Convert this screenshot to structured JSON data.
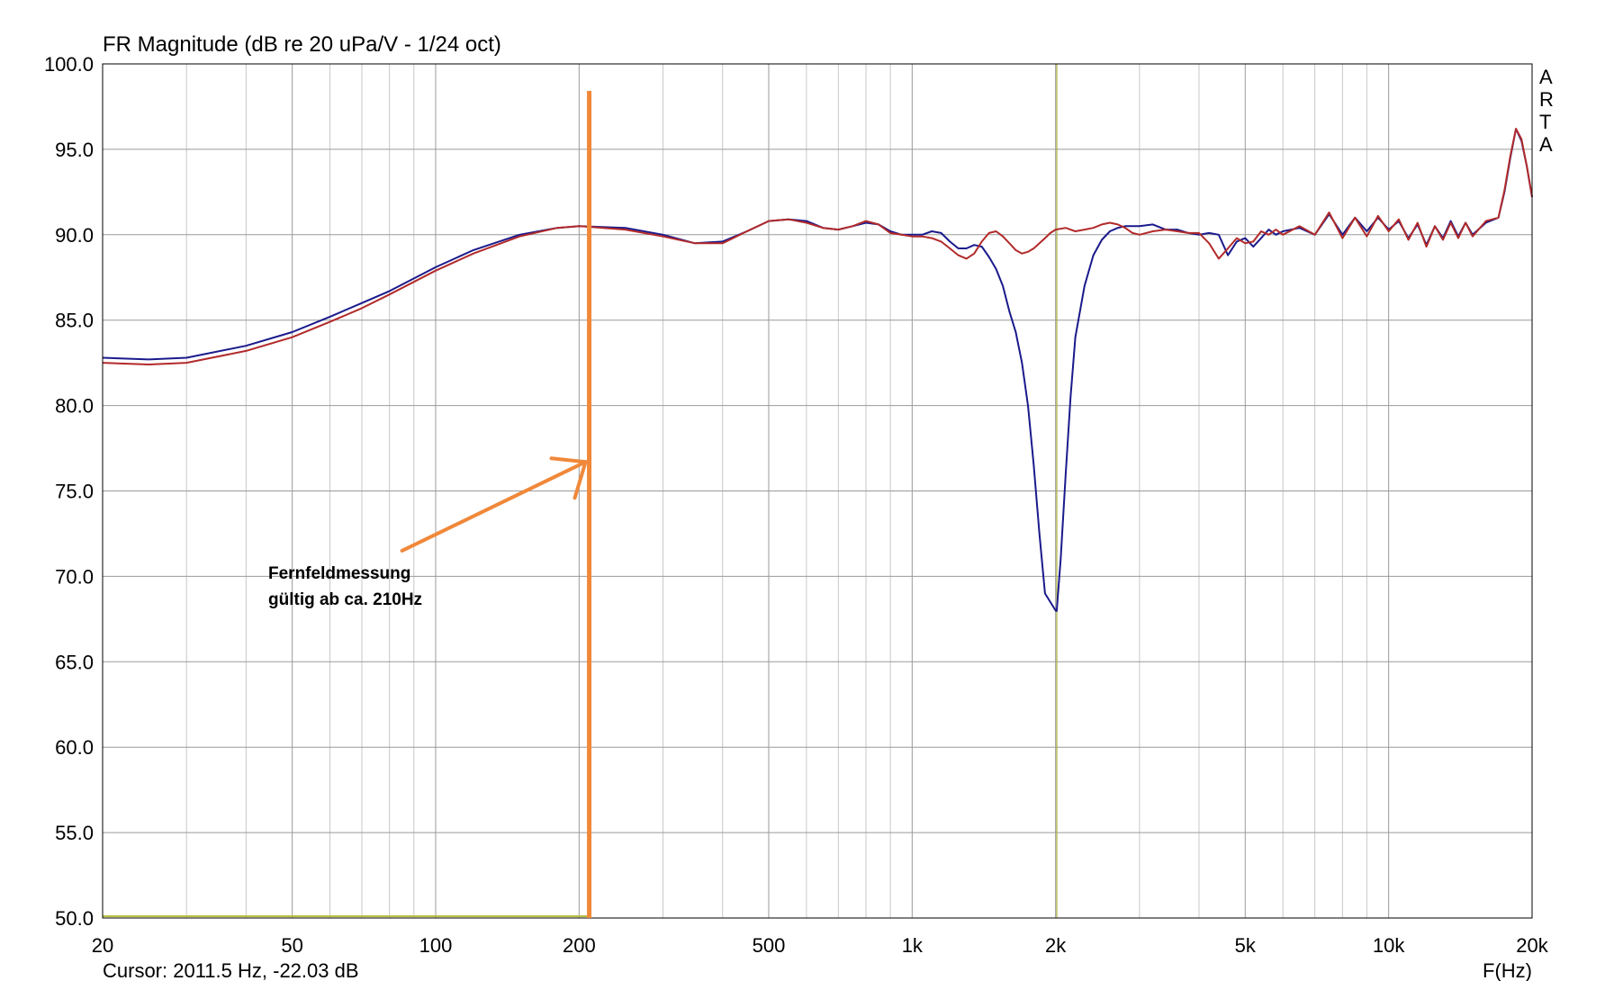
{
  "chart_data": {
    "type": "line",
    "title": "FR Magnitude (dB re 20 uPa/V - 1/24 oct)",
    "xlabel": "F(Hz)",
    "ylabel": "",
    "x_scale": "log",
    "xlim": [
      20,
      20000
    ],
    "ylim": [
      50,
      100
    ],
    "grid": true,
    "x_tick_labels": [
      {
        "value": 20,
        "label": "20"
      },
      {
        "value": 50,
        "label": "50"
      },
      {
        "value": 100,
        "label": "100"
      },
      {
        "value": 200,
        "label": "200"
      },
      {
        "value": 500,
        "label": "500"
      },
      {
        "value": 1000,
        "label": "1k"
      },
      {
        "value": 2000,
        "label": "2k"
      },
      {
        "value": 5000,
        "label": "5k"
      },
      {
        "value": 10000,
        "label": "10k"
      },
      {
        "value": 20000,
        "label": "20k"
      }
    ],
    "y_tick_labels": [
      {
        "value": 100,
        "label": "100.0"
      },
      {
        "value": 95,
        "label": "95.0"
      },
      {
        "value": 90,
        "label": "90.0"
      },
      {
        "value": 85,
        "label": "85.0"
      },
      {
        "value": 80,
        "label": "80.0"
      },
      {
        "value": 75,
        "label": "75.0"
      },
      {
        "value": 70,
        "label": "70.0"
      },
      {
        "value": 65,
        "label": "65.0"
      },
      {
        "value": 60,
        "label": "60.0"
      },
      {
        "value": 55,
        "label": "55.0"
      },
      {
        "value": 50,
        "label": "50.0"
      }
    ],
    "watermark_letters": [
      "A",
      "R",
      "T",
      "A"
    ],
    "cursor_text": "Cursor: 2011.5 Hz, -22.03 dB",
    "cursor_frequency": 2011.5,
    "annotation": {
      "lines": [
        "Fernfeldmessung",
        "gültig ab ca. 210Hz"
      ],
      "marker_frequency": 210,
      "arrow_target": [
        210,
        76.7
      ],
      "arrow_tail": [
        85,
        71.5
      ],
      "color": "#f0883a"
    },
    "series": [
      {
        "color": "#1a1a8c",
        "x": [
          20,
          25,
          30,
          40,
          50,
          60,
          70,
          80,
          100,
          120,
          150,
          180,
          200,
          250,
          300,
          350,
          400,
          450,
          500,
          550,
          600,
          650,
          700,
          750,
          800,
          850,
          900,
          950,
          1000,
          1050,
          1100,
          1150,
          1200,
          1250,
          1300,
          1350,
          1400,
          1450,
          1500,
          1550,
          1600,
          1650,
          1700,
          1750,
          1800,
          1850,
          1900,
          1950,
          2000,
          2011,
          2050,
          2100,
          2150,
          2200,
          2300,
          2400,
          2500,
          2600,
          2700,
          2800,
          2900,
          3000,
          3200,
          3400,
          3600,
          3800,
          4000,
          4200,
          4400,
          4600,
          4800,
          5000,
          5200,
          5400,
          5600,
          5800,
          6000,
          6500,
          7000,
          7500,
          8000,
          8500,
          9000,
          9500,
          10000,
          10500,
          11000,
          11500,
          12000,
          12500,
          13000,
          13500,
          14000,
          14500,
          15000,
          16000,
          17000,
          17500,
          18000,
          18500,
          19000,
          19500,
          20000
        ],
        "y": [
          82.8,
          82.7,
          82.8,
          83.5,
          84.3,
          85.2,
          86.0,
          86.7,
          88.1,
          89.1,
          90.0,
          90.4,
          90.5,
          90.4,
          90.0,
          89.5,
          89.6,
          90.2,
          90.8,
          90.9,
          90.8,
          90.4,
          90.3,
          90.5,
          90.7,
          90.6,
          90.2,
          90.0,
          90.0,
          90.0,
          90.2,
          90.1,
          89.6,
          89.2,
          89.2,
          89.4,
          89.3,
          88.7,
          88.0,
          87.0,
          85.5,
          84.3,
          82.5,
          80.0,
          76.5,
          72.5,
          69.0,
          68.5,
          68.0,
          67.97,
          71.0,
          76.0,
          80.5,
          84.0,
          87.0,
          88.8,
          89.7,
          90.2,
          90.4,
          90.5,
          90.5,
          90.5,
          90.6,
          90.3,
          90.3,
          90.1,
          90.0,
          90.1,
          90.0,
          88.8,
          89.6,
          89.8,
          89.3,
          89.8,
          90.3,
          90.0,
          90.2,
          90.4,
          90.0,
          91.2,
          90.0,
          91.0,
          90.2,
          91.0,
          90.3,
          90.8,
          89.8,
          90.6,
          89.4,
          90.5,
          89.8,
          90.8,
          89.9,
          90.7,
          90.0,
          90.7,
          91.0,
          92.5,
          94.5,
          96.2,
          95.5,
          94.0,
          92.2
        ]
      },
      {
        "color": "#b22a2a",
        "x": [
          20,
          25,
          30,
          40,
          50,
          60,
          70,
          80,
          100,
          120,
          150,
          180,
          200,
          250,
          300,
          350,
          400,
          450,
          500,
          550,
          600,
          650,
          700,
          750,
          800,
          850,
          900,
          950,
          1000,
          1050,
          1100,
          1150,
          1200,
          1250,
          1300,
          1350,
          1400,
          1450,
          1500,
          1550,
          1600,
          1650,
          1700,
          1750,
          1800,
          1850,
          1900,
          1950,
          2000,
          2100,
          2200,
          2300,
          2400,
          2500,
          2600,
          2700,
          2800,
          2900,
          3000,
          3200,
          3400,
          3600,
          3800,
          4000,
          4200,
          4400,
          4600,
          4800,
          5000,
          5200,
          5400,
          5600,
          5800,
          6000,
          6500,
          7000,
          7500,
          8000,
          8500,
          9000,
          9500,
          10000,
          10500,
          11000,
          11500,
          12000,
          12500,
          13000,
          13500,
          14000,
          14500,
          15000,
          16000,
          17000,
          17500,
          18000,
          18500,
          19000,
          19500,
          20000
        ],
        "y": [
          82.5,
          82.4,
          82.5,
          83.2,
          84.0,
          84.9,
          85.7,
          86.5,
          87.9,
          88.9,
          89.9,
          90.4,
          90.5,
          90.3,
          89.9,
          89.5,
          89.5,
          90.2,
          90.8,
          90.9,
          90.7,
          90.4,
          90.3,
          90.5,
          90.8,
          90.6,
          90.1,
          90.0,
          89.9,
          89.9,
          89.8,
          89.6,
          89.2,
          88.8,
          88.6,
          88.9,
          89.6,
          90.1,
          90.2,
          89.9,
          89.5,
          89.1,
          88.9,
          89.0,
          89.2,
          89.5,
          89.8,
          90.1,
          90.3,
          90.4,
          90.2,
          90.3,
          90.4,
          90.6,
          90.7,
          90.6,
          90.4,
          90.1,
          90.0,
          90.2,
          90.3,
          90.2,
          90.1,
          90.1,
          89.5,
          88.6,
          89.2,
          89.8,
          89.5,
          89.6,
          90.2,
          90.0,
          90.3,
          90.0,
          90.5,
          90.0,
          91.3,
          89.8,
          91.0,
          89.9,
          91.1,
          90.2,
          90.9,
          89.7,
          90.7,
          89.3,
          90.5,
          89.7,
          90.7,
          89.8,
          90.7,
          89.9,
          90.8,
          91.0,
          92.6,
          94.6,
          96.2,
          95.6,
          94.0,
          92.2
        ]
      }
    ]
  }
}
